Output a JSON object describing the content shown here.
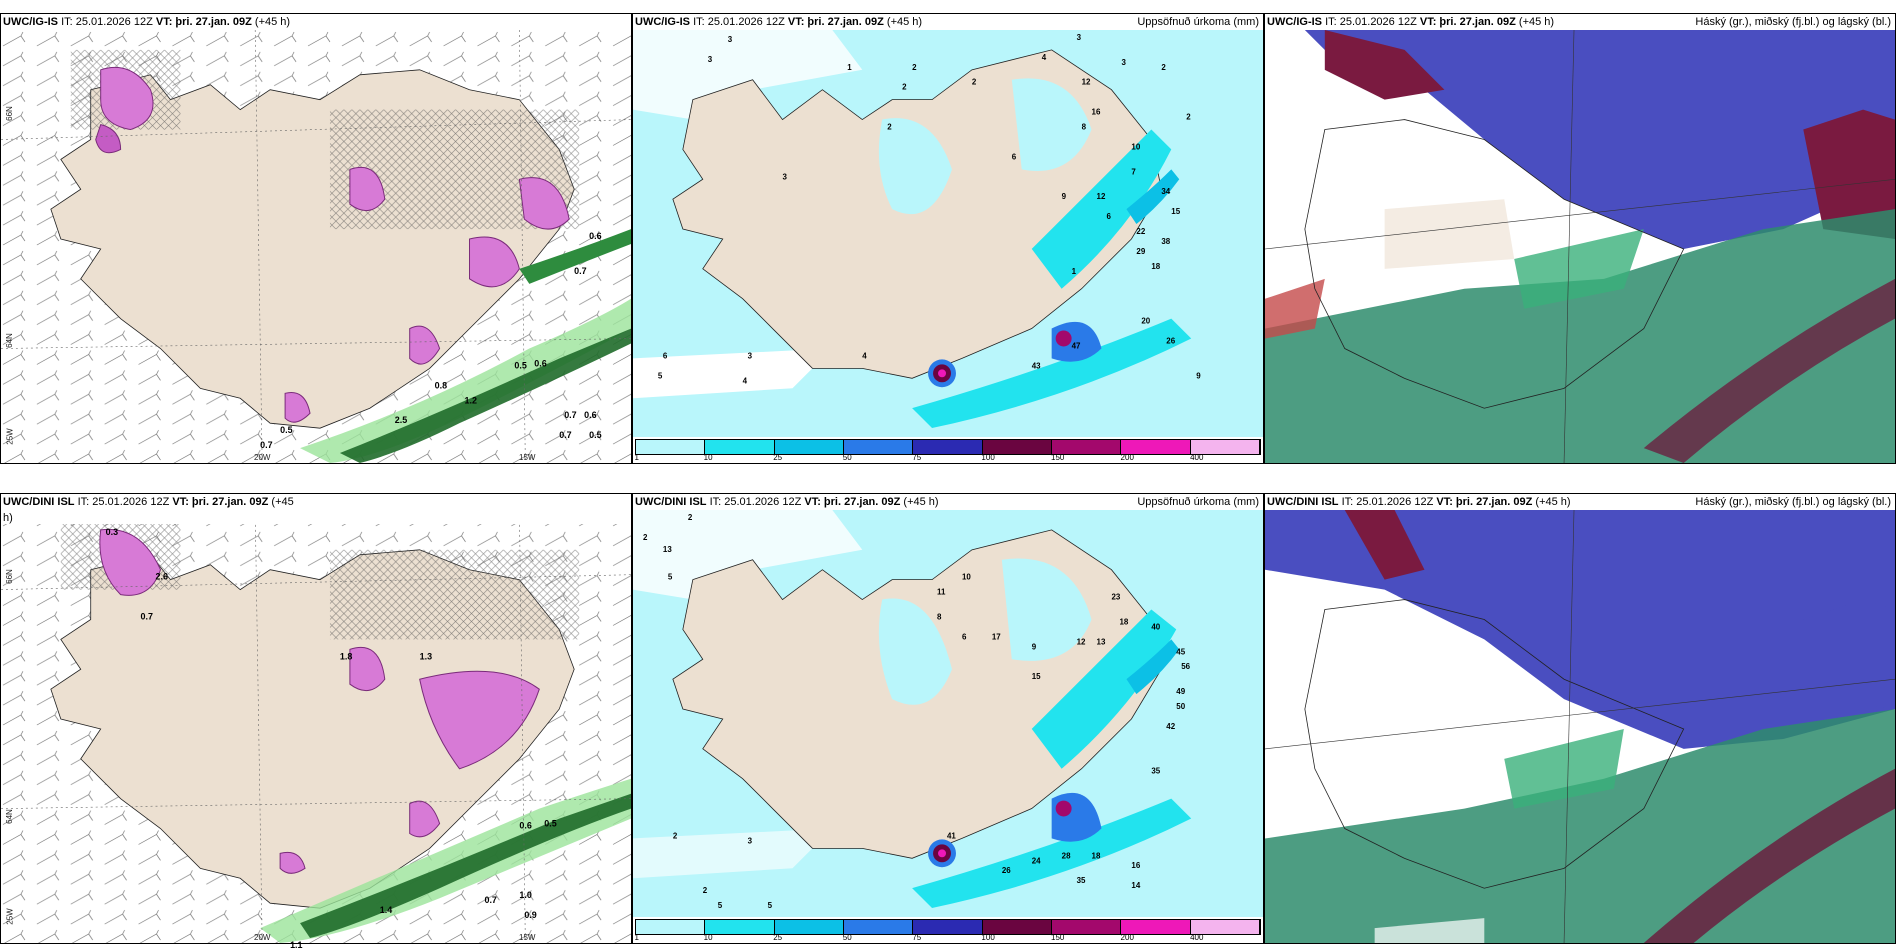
{
  "panels": {
    "p1": {
      "model": "UWC/IG-IS",
      "it": "IT: 25.01.2026 12Z",
      "vt_label": "VT:",
      "vt": "þri. 27.jan. 09Z",
      "lead": "(+45 h)",
      "right": ""
    },
    "p2": {
      "model": "UWC/IG-IS",
      "it": "IT: 25.01.2026 12Z",
      "vt_label": "VT:",
      "vt": "þri. 27.jan. 09Z",
      "lead": "(+45 h)",
      "right": "Uppsöfnuð úrkoma (mm)"
    },
    "p3": {
      "model": "UWC/IG-IS",
      "it": "IT: 25.01.2026 12Z",
      "vt_label": "VT:",
      "vt": "þri. 27.jan. 09Z",
      "lead": "(+45 h)",
      "right": "Háský (gr.), miðský (fj.bl.) og lágský (bl.)"
    },
    "p4": {
      "model": "UWC/DINI ISL",
      "it": "IT: 25.01.2026 12Z",
      "vt_label": "VT:",
      "vt": "þri. 27.jan. 09Z",
      "lead": "(+45",
      "lead2": "h)",
      "right": ""
    },
    "p5": {
      "model": "UWC/DINI ISL",
      "it": "IT: 25.01.2026 12Z",
      "vt_label": "VT:",
      "vt": "þri. 27.jan. 09Z",
      "lead": "(+45 h)",
      "right": "Uppsöfnuð úrkoma (mm)"
    },
    "p6": {
      "model": "UWC/DINI ISL",
      "it": "IT: 25.01.2026 12Z",
      "vt_label": "VT:",
      "vt": "þri. 27.jan. 09Z",
      "lead": "(+45 h)",
      "right": "Háský (gr.), miðský (fj.bl.) og lágský (bl.)"
    }
  },
  "axes": {
    "lat66": "66N",
    "lat64": "64N",
    "lon25": "25W",
    "lon20": "20W",
    "lon15": "15W"
  },
  "legend": {
    "labels": [
      "1",
      "10",
      "25",
      "50",
      "75",
      "100",
      "150",
      "200",
      "400"
    ],
    "colors": [
      "#b9f6fb",
      "#22e3ee",
      "#0cc0e6",
      "#2a7ae8",
      "#2b2ab2",
      "#6a0540",
      "#a3086c",
      "#ee18b8",
      "#f4b4ee"
    ]
  },
  "precip_labels_top": [
    "3",
    "3",
    "1",
    "2",
    "2",
    "4",
    "3",
    "12",
    "3",
    "2",
    "16",
    "2",
    "6",
    "8",
    "10",
    "7",
    "9",
    "12",
    "6",
    "1",
    "22",
    "34",
    "15",
    "29",
    "18",
    "38",
    "20",
    "26",
    "43",
    "47",
    "9",
    "4",
    "3",
    "2",
    "6",
    "5",
    "4",
    "3",
    "2"
  ],
  "precip_labels_bottom": [
    "2",
    "3",
    "13",
    "2",
    "5",
    "2",
    "10",
    "11",
    "8",
    "6",
    "17",
    "9",
    "15",
    "12",
    "13",
    "23",
    "18",
    "40",
    "45",
    "56",
    "49",
    "50",
    "42",
    "35",
    "28",
    "24",
    "18",
    "16",
    "14",
    "41",
    "26",
    "35",
    "2",
    "5",
    "5"
  ],
  "wind_labels_top": [
    "0.6",
    "0.7",
    "0.5",
    "0.6",
    "0.8",
    "1.2",
    "2.5",
    "0.7",
    "0.5",
    "0.7",
    "0.6",
    "0.5",
    "0.7"
  ],
  "wind_labels_bottom": [
    "0.3",
    "2.6",
    "0.7",
    "1.8",
    "1.3",
    "0.6",
    "0.5",
    "0.7",
    "0.9",
    "1.1",
    "1.4",
    "1.0"
  ],
  "colors": {
    "land": "#ece0d1",
    "sea": "#ffffff",
    "precip_light": "#b9f6fb",
    "cloud_high": "#7a1a40",
    "cloud_mid": "#4a4ec0",
    "cloud_low": "#2e8c6c"
  }
}
